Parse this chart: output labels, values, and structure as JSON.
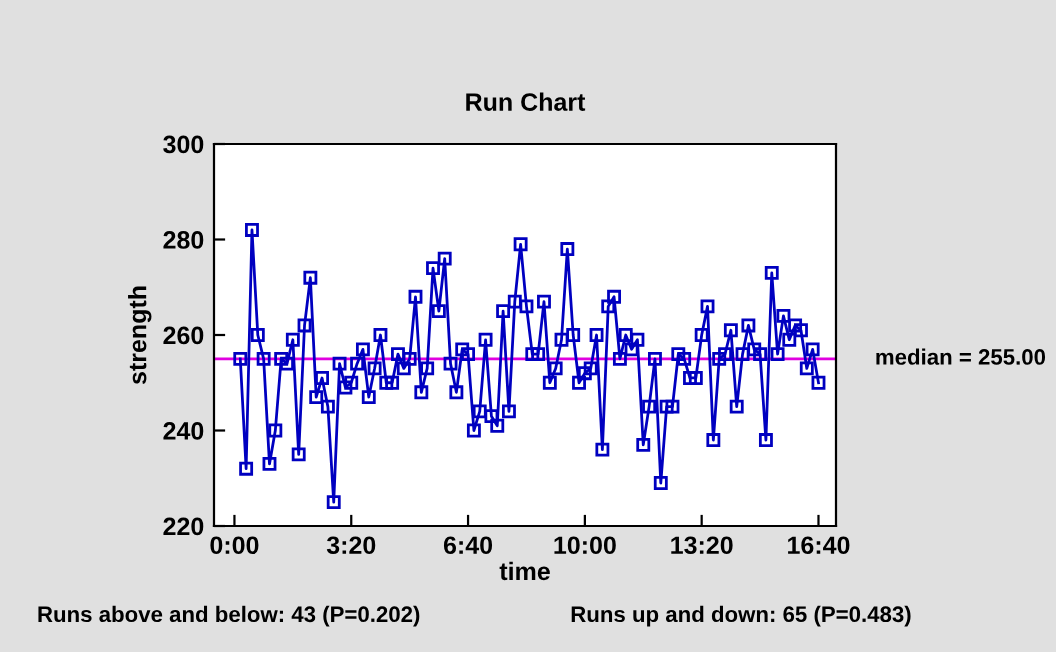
{
  "chart_data": {
    "type": "line",
    "title": "Run Chart",
    "xlabel": "time",
    "ylabel": "strength",
    "x": [
      10,
      20,
      30,
      40,
      50,
      60,
      70,
      80,
      90,
      100,
      110,
      120,
      130,
      140,
      150,
      160,
      170,
      180,
      190,
      200,
      210,
      220,
      230,
      240,
      250,
      260,
      270,
      280,
      290,
      300,
      310,
      320,
      330,
      340,
      350,
      360,
      370,
      380,
      390,
      400,
      410,
      420,
      430,
      440,
      450,
      460,
      470,
      480,
      490,
      500,
      510,
      520,
      530,
      540,
      550,
      560,
      570,
      580,
      590,
      600,
      610,
      620,
      630,
      640,
      650,
      660,
      670,
      680,
      690,
      700,
      710,
      720,
      730,
      740,
      750,
      760,
      770,
      780,
      790,
      800,
      810,
      820,
      830,
      840,
      850,
      860,
      870,
      880,
      890,
      900,
      910,
      920,
      930,
      940,
      950,
      960,
      970,
      980,
      990,
      1000
    ],
    "series": [
      {
        "color": "#0000c0",
        "values": [
          255,
          232,
          282,
          260,
          255,
          233,
          240,
          255,
          254,
          259,
          235,
          262,
          272,
          247,
          251,
          245,
          225,
          254,
          249,
          250,
          254,
          257,
          247,
          253,
          260,
          250,
          250,
          256,
          253,
          255,
          268,
          248,
          253,
          274,
          265,
          276,
          254,
          248,
          257,
          256,
          240,
          244,
          259,
          243,
          241,
          265,
          244,
          267,
          279,
          266,
          256,
          256,
          267,
          250,
          253,
          259,
          278,
          260,
          250,
          252,
          253,
          260,
          236,
          266,
          268,
          255,
          260,
          257,
          259,
          237,
          245,
          255,
          229,
          245,
          245,
          256,
          255,
          251,
          251,
          260,
          266,
          238,
          255,
          256,
          261,
          245,
          256,
          262,
          257,
          256,
          238,
          273,
          256,
          264,
          259,
          262,
          261,
          253,
          257,
          250
        ]
      }
    ],
    "marker": "square",
    "line_style": "solid",
    "xlim": [
      -35,
      1030
    ],
    "xticks": [
      {
        "value": 0,
        "label": "0:00"
      },
      {
        "value": 200,
        "label": "3:20"
      },
      {
        "value": 400,
        "label": "6:40"
      },
      {
        "value": 600,
        "label": "10:00"
      },
      {
        "value": 800,
        "label": "13:20"
      },
      {
        "value": 1000,
        "label": "16:40"
      }
    ],
    "ylim": [
      220,
      300
    ],
    "yticks": [
      220,
      240,
      260,
      280,
      300
    ],
    "ref_lines": [
      {
        "axis": "y",
        "value": 255,
        "label": "median = 255.00",
        "color": "#e000e0"
      }
    ],
    "annotations": [
      "Runs above and below: 43 (P=0.202)",
      "Runs up and down: 65 (P=0.483)"
    ],
    "grid": false,
    "legend": false
  }
}
